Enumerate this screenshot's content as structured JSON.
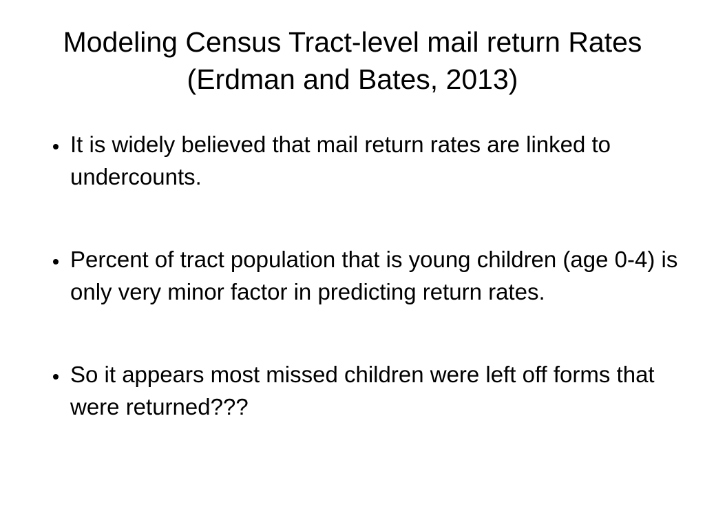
{
  "slide": {
    "title": "Modeling Census Tract-level mail return Rates (Erdman and Bates, 2013)",
    "bullets": [
      "It is widely believed that mail return rates are linked to undercounts.",
      "Percent of tract population that is young children (age 0-4) is only very minor factor in predicting return rates.",
      "So it appears most missed children were left off forms that were returned???"
    ]
  }
}
